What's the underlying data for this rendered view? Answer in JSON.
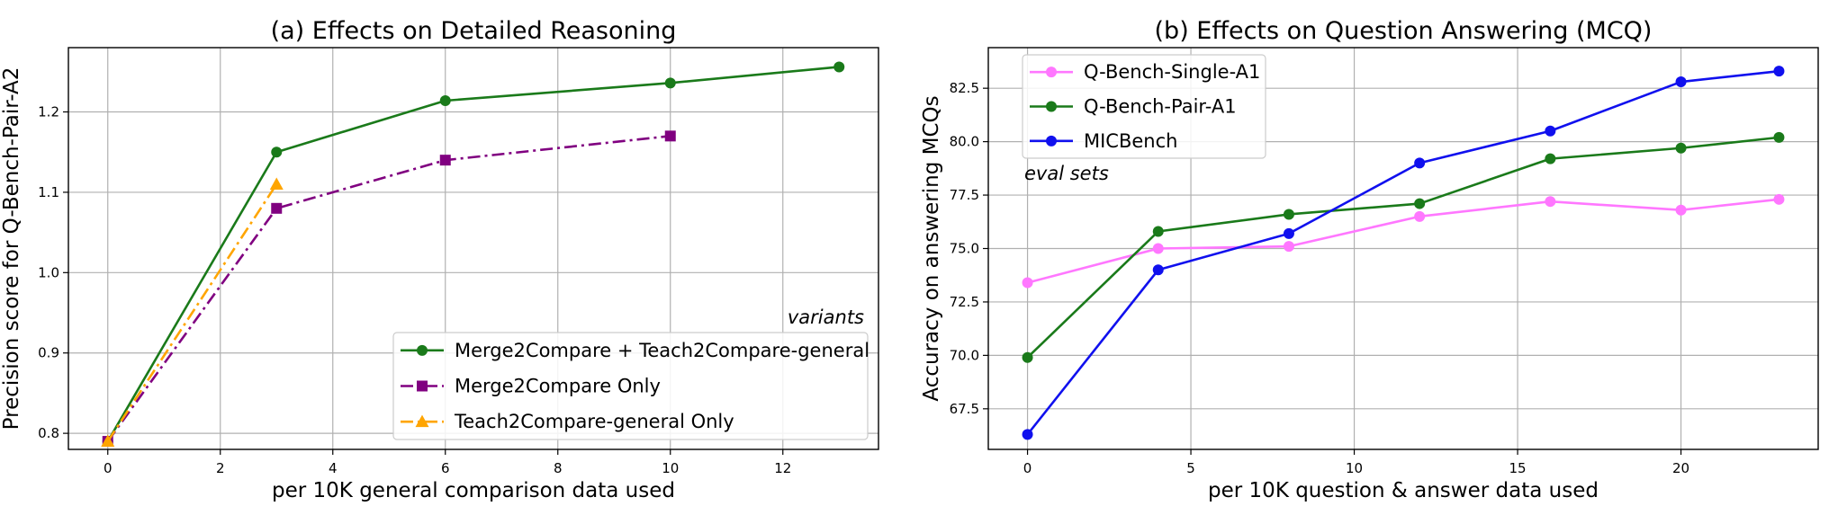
{
  "chart_data": [
    {
      "type": "line",
      "title": "(a) Effects on Detailed Reasoning",
      "xlabel": "per 10K general comparison data used",
      "ylabel": "Precision score for Q-Bench-Pair-A2",
      "xlim": [
        -0.7,
        13.7
      ],
      "ylim": [
        0.78,
        1.28
      ],
      "xticks": [
        0,
        2,
        4,
        6,
        8,
        10,
        12
      ],
      "yticks": [
        0.8,
        0.9,
        1.0,
        1.1,
        1.2
      ],
      "xtick_labels": [
        "0",
        "2",
        "4",
        "6",
        "8",
        "10",
        "12"
      ],
      "ytick_labels": [
        "0.8",
        "0.9",
        "1.0",
        "1.1",
        "1.2"
      ],
      "grid": true,
      "legend_title": "variants",
      "legend_position": "lower-right",
      "series": [
        {
          "name": "Merge2Compare + Teach2Compare-general",
          "x": [
            0,
            3,
            6,
            10,
            13
          ],
          "values": [
            0.79,
            1.15,
            1.214,
            1.236,
            1.256
          ],
          "color": "#1a7a1a",
          "marker": "circle",
          "dash": "solid"
        },
        {
          "name": "Merge2Compare Only",
          "x": [
            0,
            3,
            6,
            10
          ],
          "values": [
            0.79,
            1.08,
            1.14,
            1.17
          ],
          "color": "#800080",
          "marker": "square",
          "dash": "dashdot"
        },
        {
          "name": "Teach2Compare-general Only",
          "x": [
            0,
            3
          ],
          "values": [
            0.79,
            1.11
          ],
          "color": "#ffa500",
          "marker": "triangle",
          "dash": "dashdot"
        }
      ]
    },
    {
      "type": "line",
      "title": "(b) Effects on Question Answering (MCQ)",
      "xlabel": "per 10K question & answer data used",
      "ylabel": "Accuracy on answering MCQs",
      "xlim": [
        -1.2,
        24.2
      ],
      "ylim": [
        65.6,
        84.4
      ],
      "xticks": [
        0,
        5,
        10,
        15,
        20
      ],
      "yticks": [
        67.5,
        70.0,
        72.5,
        75.0,
        77.5,
        80.0,
        82.5
      ],
      "xtick_labels": [
        "0",
        "5",
        "10",
        "15",
        "20"
      ],
      "ytick_labels": [
        "67.5",
        "70.0",
        "72.5",
        "75.0",
        "77.5",
        "80.0",
        "82.5"
      ],
      "grid": true,
      "legend_title": "eval sets",
      "legend_position": "upper-left",
      "series": [
        {
          "name": "Q-Bench-Single-A1",
          "x": [
            0,
            4,
            8,
            12,
            16,
            20,
            23
          ],
          "values": [
            73.4,
            75.0,
            75.1,
            76.5,
            77.2,
            76.8,
            77.3
          ],
          "color": "#ff77ff",
          "marker": "circle",
          "dash": "solid"
        },
        {
          "name": "Q-Bench-Pair-A1",
          "x": [
            0,
            4,
            8,
            12,
            16,
            20,
            23
          ],
          "values": [
            69.9,
            75.8,
            76.6,
            77.1,
            79.2,
            79.7,
            80.2
          ],
          "color": "#1a7a1a",
          "marker": "circle",
          "dash": "solid"
        },
        {
          "name": "MICBench",
          "x": [
            0,
            4,
            8,
            12,
            16,
            20,
            23
          ],
          "values": [
            66.3,
            74.0,
            75.7,
            79.0,
            80.5,
            82.8,
            83.3
          ],
          "color": "#1010ee",
          "marker": "circle",
          "dash": "solid"
        }
      ]
    }
  ]
}
